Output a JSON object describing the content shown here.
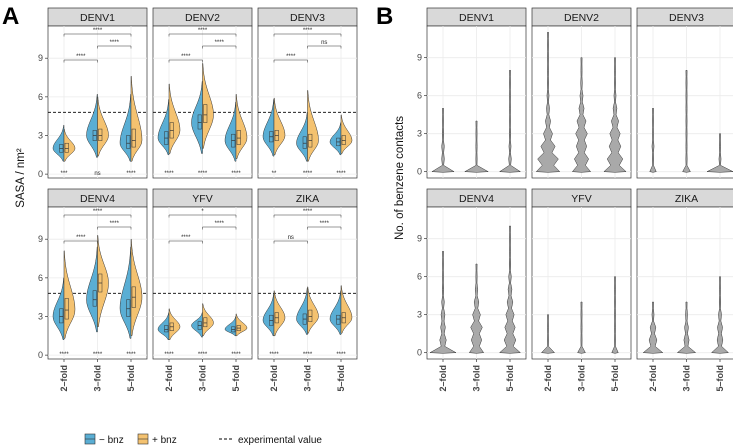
{
  "figure": {
    "panel_letters": [
      "A",
      "B"
    ],
    "legend": {
      "minus_label": "− bnz",
      "plus_label": "+ bnz",
      "line_label": "experimental value",
      "minus_color": "#5aaed4",
      "plus_color": "#f4c270"
    }
  },
  "chart_data": [
    {
      "id": "A",
      "type": "violin",
      "ylabel": "SASA / nm²",
      "ylim": [
        -0.3,
        11.5
      ],
      "yticks": [
        0,
        3,
        6,
        9
      ],
      "categories": [
        "2–fold",
        "3–fold",
        "5–fold"
      ],
      "reference_line": {
        "y": 4.8,
        "label": "experimental value",
        "style": "dashed"
      },
      "facets": [
        {
          "title": "DENV1",
          "minus": {
            "medians": [
              2.0,
              3.0,
              2.4
            ],
            "q1": [
              1.7,
              2.6,
              2.0
            ],
            "q3": [
              2.3,
              3.4,
              3.0
            ],
            "min": [
              1.0,
              1.3,
              1.0
            ],
            "max": [
              3.8,
              6.2,
              6.2
            ]
          },
          "plus": {
            "medians": [
              2.0,
              3.0,
              2.6
            ],
            "q1": [
              1.7,
              2.6,
              2.1
            ],
            "q3": [
              2.4,
              3.5,
              3.5
            ],
            "min": [
              1.0,
              1.4,
              1.0
            ],
            "max": [
              3.5,
              6.0,
              7.6
            ]
          },
          "bottom_sig": [
            "***",
            "ns",
            "****"
          ],
          "brackets": [
            {
              "from": 0,
              "to": 1,
              "label": "****"
            },
            {
              "from": 1,
              "to": 2,
              "label": "****"
            },
            {
              "from": 0,
              "to": 2,
              "label": "****"
            }
          ]
        },
        {
          "title": "DENV2",
          "minus": {
            "medians": [
              2.8,
              4.0,
              2.6
            ],
            "q1": [
              2.3,
              3.5,
              2.1
            ],
            "q3": [
              3.3,
              4.6,
              3.1
            ],
            "min": [
              1.5,
              1.6,
              1.0
            ],
            "max": [
              5.8,
              7.2,
              5.6
            ]
          },
          "plus": {
            "medians": [
              3.4,
              4.6,
              2.8
            ],
            "q1": [
              2.8,
              4.0,
              2.3
            ],
            "q3": [
              4.0,
              5.4,
              3.4
            ],
            "min": [
              1.6,
              2.0,
              1.2
            ],
            "max": [
              7.0,
              8.6,
              6.2
            ]
          },
          "bottom_sig": [
            "****",
            "****",
            "****"
          ],
          "brackets": [
            {
              "from": 0,
              "to": 1,
              "label": "****"
            },
            {
              "from": 1,
              "to": 2,
              "label": "****"
            },
            {
              "from": 0,
              "to": 2,
              "label": "****"
            }
          ]
        },
        {
          "title": "DENV3",
          "minus": {
            "medians": [
              2.9,
              2.4,
              2.5
            ],
            "q1": [
              2.5,
              2.0,
              2.2
            ],
            "q3": [
              3.3,
              2.9,
              2.8
            ],
            "min": [
              1.4,
              1.0,
              1.5
            ],
            "max": [
              5.8,
              4.8,
              4.0
            ]
          },
          "plus": {
            "medians": [
              3.0,
              2.6,
              2.6
            ],
            "q1": [
              2.6,
              2.1,
              2.3
            ],
            "q3": [
              3.4,
              3.1,
              3.0
            ],
            "min": [
              1.5,
              1.0,
              1.6
            ],
            "max": [
              5.9,
              6.5,
              4.6
            ]
          },
          "bottom_sig": [
            "**",
            "****",
            "****"
          ],
          "brackets": [
            {
              "from": 0,
              "to": 1,
              "label": "****"
            },
            {
              "from": 1,
              "to": 2,
              "label": "ns"
            },
            {
              "from": 0,
              "to": 2,
              "label": "****"
            }
          ]
        },
        {
          "title": "DENV4",
          "minus": {
            "medians": [
              3.0,
              4.3,
              3.6
            ],
            "q1": [
              2.5,
              3.8,
              3.0
            ],
            "q3": [
              3.6,
              5.0,
              4.3
            ],
            "min": [
              1.2,
              1.8,
              1.3
            ],
            "max": [
              6.0,
              8.4,
              8.4
            ]
          },
          "plus": {
            "medians": [
              3.5,
              5.6,
              4.5
            ],
            "q1": [
              2.8,
              4.9,
              3.7
            ],
            "q3": [
              4.4,
              6.3,
              5.3
            ],
            "min": [
              1.3,
              2.2,
              1.5
            ],
            "max": [
              8.1,
              9.3,
              9.0
            ]
          },
          "bottom_sig": [
            "****",
            "****",
            "****"
          ],
          "brackets": [
            {
              "from": 0,
              "to": 1,
              "label": "****"
            },
            {
              "from": 1,
              "to": 2,
              "label": "****"
            },
            {
              "from": 0,
              "to": 2,
              "label": "****"
            }
          ]
        },
        {
          "title": "YFV",
          "minus": {
            "medians": [
              2.0,
              2.3,
              2.0
            ],
            "q1": [
              1.8,
              2.0,
              1.8
            ],
            "q3": [
              2.3,
              2.6,
              2.2
            ],
            "min": [
              1.2,
              1.4,
              1.5
            ],
            "max": [
              3.3,
              3.3,
              3.0
            ]
          },
          "plus": {
            "medians": [
              2.2,
              2.5,
              2.1
            ],
            "q1": [
              1.9,
              2.2,
              1.9
            ],
            "q3": [
              2.5,
              2.9,
              2.3
            ],
            "min": [
              1.2,
              1.5,
              1.5
            ],
            "max": [
              3.6,
              4.0,
              3.2
            ]
          },
          "bottom_sig": [
            "****",
            "****",
            "****"
          ],
          "brackets": [
            {
              "from": 0,
              "to": 1,
              "label": "****"
            },
            {
              "from": 1,
              "to": 2,
              "label": "****"
            },
            {
              "from": 0,
              "to": 2,
              "label": "*"
            }
          ]
        },
        {
          "title": "ZIKA",
          "minus": {
            "medians": [
              2.7,
              2.8,
              2.8
            ],
            "q1": [
              2.3,
              2.4,
              2.4
            ],
            "q3": [
              3.1,
              3.2,
              3.1
            ],
            "min": [
              1.5,
              1.6,
              1.6
            ],
            "max": [
              4.8,
              5.2,
              5.0
            ]
          },
          "plus": {
            "medians": [
              2.9,
              3.0,
              2.9
            ],
            "q1": [
              2.5,
              2.6,
              2.5
            ],
            "q3": [
              3.3,
              3.5,
              3.3
            ],
            "min": [
              1.5,
              1.7,
              1.7
            ],
            "max": [
              5.0,
              5.3,
              5.4
            ]
          },
          "bottom_sig": [
            "****",
            "****",
            "****"
          ],
          "brackets": [
            {
              "from": 0,
              "to": 1,
              "label": "ns"
            },
            {
              "from": 1,
              "to": 2,
              "label": "****"
            },
            {
              "from": 0,
              "to": 2,
              "label": "****"
            }
          ]
        }
      ]
    },
    {
      "id": "B",
      "type": "violin",
      "ylabel": "No. of benzene contacts",
      "ylim": [
        -0.5,
        11.5
      ],
      "yticks": [
        0,
        3,
        6,
        9
      ],
      "categories": [
        "2–fold",
        "3–fold",
        "5–fold"
      ],
      "facets": [
        {
          "title": "DENV1",
          "max": [
            5,
            4,
            8
          ],
          "dens": [
            [
              0.85,
              0.1,
              0.1,
              0.06,
              0.02,
              0.01
            ],
            [
              0.9,
              0.05,
              0.05,
              0.03,
              0.01
            ],
            [
              0.8,
              0.1,
              0.08,
              0.06,
              0.04,
              0.03,
              0.02,
              0.01,
              0.01
            ]
          ]
        },
        {
          "title": "DENV2",
          "max": [
            11,
            9,
            9
          ],
          "dens": [
            [
              0.9,
              0.8,
              0.55,
              0.35,
              0.2,
              0.12,
              0.08,
              0.05,
              0.03,
              0.02,
              0.01,
              0.01
            ],
            [
              0.7,
              0.55,
              0.4,
              0.45,
              0.35,
              0.2,
              0.12,
              0.06,
              0.03,
              0.01
            ],
            [
              0.85,
              0.6,
              0.45,
              0.4,
              0.28,
              0.15,
              0.08,
              0.05,
              0.02,
              0.01
            ]
          ]
        },
        {
          "title": "DENV3",
          "max": [
            5,
            8,
            3
          ],
          "dens": [
            [
              0.25,
              0.05,
              0.08,
              0.03,
              0.02,
              0.01
            ],
            [
              0.3,
              0.05,
              0.04,
              0.03,
              0.02,
              0.02,
              0.01,
              0.01,
              0.01
            ],
            [
              1.0,
              0.08,
              0.05,
              0.01
            ]
          ]
        },
        {
          "title": "DENV4",
          "max": [
            8,
            7,
            10
          ],
          "dens": [
            [
              1.0,
              0.25,
              0.18,
              0.15,
              0.1,
              0.06,
              0.04,
              0.02,
              0.01
            ],
            [
              0.55,
              0.4,
              0.45,
              0.3,
              0.18,
              0.1,
              0.05,
              0.02
            ],
            [
              0.8,
              0.45,
              0.4,
              0.32,
              0.22,
              0.15,
              0.1,
              0.06,
              0.04,
              0.02,
              0.01
            ]
          ]
        },
        {
          "title": "YFV",
          "max": [
            3,
            4,
            6
          ],
          "dens": [
            [
              0.5,
              0.02,
              0.02,
              0.01
            ],
            [
              0.3,
              0.02,
              0.02,
              0.01,
              0.01
            ],
            [
              0.25,
              0.02,
              0.02,
              0.01,
              0.01,
              0.01,
              0.01
            ]
          ]
        },
        {
          "title": "ZIKA",
          "max": [
            4,
            4,
            6
          ],
          "dens": [
            [
              0.75,
              0.3,
              0.22,
              0.08,
              0.02
            ],
            [
              0.7,
              0.2,
              0.15,
              0.08,
              0.02
            ],
            [
              0.65,
              0.22,
              0.2,
              0.12,
              0.06,
              0.03,
              0.01
            ]
          ]
        }
      ]
    }
  ]
}
